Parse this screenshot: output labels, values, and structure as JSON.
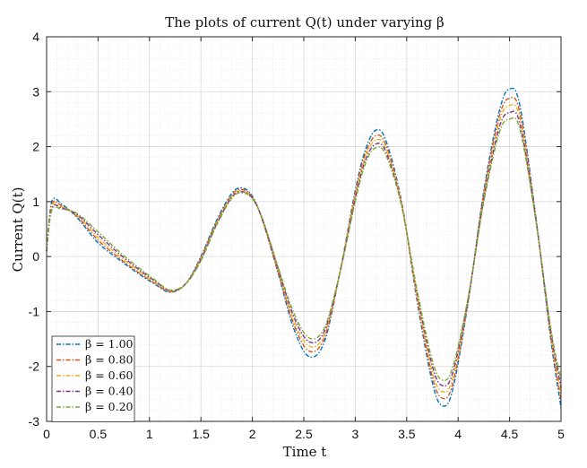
{
  "chart_data": {
    "type": "line",
    "title": "The plots of current Q(t) under varying β",
    "xlabel": "Time t",
    "ylabel": "Current Q(t)",
    "xlim": [
      0,
      5
    ],
    "ylim": [
      -3,
      4
    ],
    "xticks": [
      0,
      0.5,
      1,
      1.5,
      2,
      2.5,
      3,
      3.5,
      4,
      4.5,
      5
    ],
    "xtick_labels": [
      "0",
      "0.5",
      "1",
      "1.5",
      "2",
      "2.5",
      "3",
      "3.5",
      "4",
      "4.5",
      "5"
    ],
    "yticks": [
      -3,
      -2,
      -1,
      0,
      1,
      2,
      3,
      4
    ],
    "ytick_labels": [
      "-3",
      "-2",
      "-1",
      "0",
      "1",
      "2",
      "3",
      "4"
    ],
    "grid": true,
    "minor_grid": true,
    "legend_position": "bottom-left",
    "line_style": "dash-dot",
    "x": [
      0,
      0.05,
      0.15,
      0.3,
      0.5,
      0.7,
      0.9,
      1.05,
      1.2,
      1.35,
      1.5,
      1.65,
      1.8,
      1.9,
      2.0,
      2.1,
      2.25,
      2.4,
      2.55,
      2.7,
      2.85,
      3.0,
      3.1,
      3.2,
      3.3,
      3.45,
      3.6,
      3.75,
      3.85,
      3.95,
      4.1,
      4.25,
      4.4,
      4.5,
      4.6,
      4.75,
      4.9,
      5.0
    ],
    "series": [
      {
        "name": "β = 1.00",
        "color": "#0072BD",
        "values": [
          0.1,
          1.0,
          0.95,
          0.7,
          0.25,
          -0.05,
          -0.32,
          -0.5,
          -0.65,
          -0.5,
          0.0,
          0.65,
          1.15,
          1.25,
          1.1,
          0.65,
          -0.3,
          -1.3,
          -1.82,
          -1.55,
          -0.3,
          1.2,
          1.95,
          2.3,
          2.1,
          1.0,
          -0.8,
          -2.3,
          -2.72,
          -2.4,
          -0.8,
          1.2,
          2.65,
          3.05,
          2.75,
          0.8,
          -1.5,
          -2.75
        ]
      },
      {
        "name": "β = 0.80",
        "color": "#D95319",
        "values": [
          0.1,
          0.95,
          0.92,
          0.72,
          0.3,
          -0.02,
          -0.3,
          -0.48,
          -0.64,
          -0.5,
          -0.02,
          0.62,
          1.12,
          1.22,
          1.08,
          0.65,
          -0.28,
          -1.22,
          -1.72,
          -1.48,
          -0.3,
          1.15,
          1.88,
          2.2,
          2.02,
          0.98,
          -0.75,
          -2.2,
          -2.58,
          -2.3,
          -0.78,
          1.15,
          2.55,
          2.88,
          2.62,
          0.78,
          -1.45,
          -2.62
        ]
      },
      {
        "name": "β = 0.60",
        "color": "#EDB120",
        "values": [
          0.1,
          0.92,
          0.9,
          0.74,
          0.35,
          0.02,
          -0.27,
          -0.46,
          -0.63,
          -0.5,
          -0.04,
          0.6,
          1.1,
          1.2,
          1.07,
          0.66,
          -0.25,
          -1.15,
          -1.63,
          -1.42,
          -0.3,
          1.1,
          1.82,
          2.12,
          1.96,
          0.96,
          -0.7,
          -2.1,
          -2.46,
          -2.2,
          -0.76,
          1.1,
          2.45,
          2.75,
          2.52,
          0.76,
          -1.4,
          -2.5
        ]
      },
      {
        "name": "β = 0.40",
        "color": "#7E2F8E",
        "values": [
          0.1,
          0.88,
          0.88,
          0.76,
          0.4,
          0.06,
          -0.24,
          -0.44,
          -0.62,
          -0.5,
          -0.06,
          0.58,
          1.08,
          1.18,
          1.06,
          0.67,
          -0.22,
          -1.08,
          -1.55,
          -1.36,
          -0.3,
          1.05,
          1.76,
          2.05,
          1.9,
          0.94,
          -0.65,
          -2.0,
          -2.35,
          -2.1,
          -0.74,
          1.05,
          2.35,
          2.62,
          2.42,
          0.74,
          -1.35,
          -2.38
        ]
      },
      {
        "name": "β = 0.20",
        "color": "#77AC30",
        "values": [
          0.1,
          0.84,
          0.86,
          0.78,
          0.45,
          0.1,
          -0.21,
          -0.42,
          -0.61,
          -0.5,
          -0.08,
          0.56,
          1.06,
          1.16,
          1.05,
          0.68,
          -0.19,
          -1.01,
          -1.48,
          -1.3,
          -0.3,
          1.0,
          1.7,
          1.98,
          1.84,
          0.92,
          -0.6,
          -1.9,
          -2.25,
          -2.0,
          -0.72,
          1.0,
          2.25,
          2.5,
          2.32,
          0.72,
          -1.3,
          -2.25
        ]
      }
    ]
  }
}
